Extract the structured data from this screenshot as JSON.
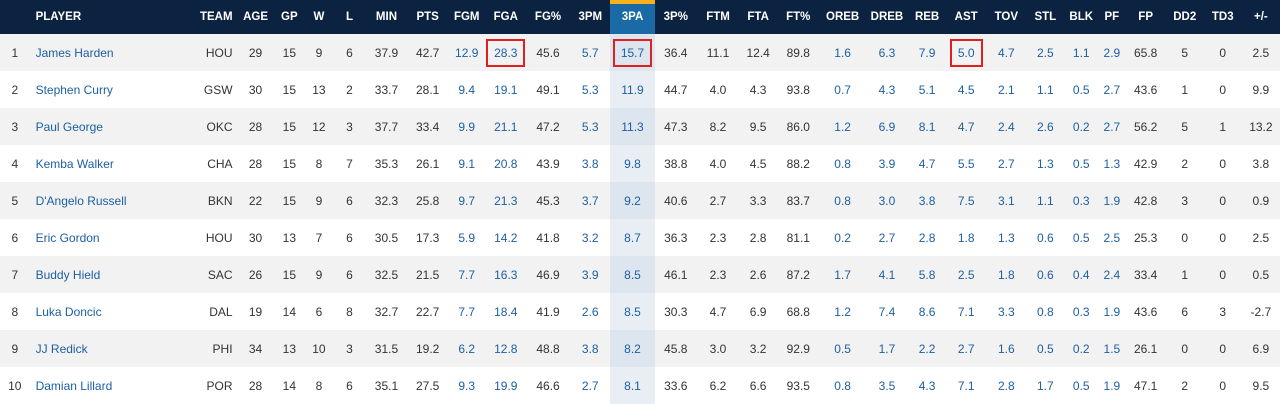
{
  "columns": [
    "",
    "PLAYER",
    "TEAM",
    "AGE",
    "GP",
    "W",
    "L",
    "MIN",
    "PTS",
    "FGM",
    "FGA",
    "FG%",
    "3PM",
    "3PA",
    "3P%",
    "FTM",
    "FTA",
    "FT%",
    "OREB",
    "DREB",
    "REB",
    "AST",
    "TOV",
    "STL",
    "BLK",
    "PF",
    "FP",
    "DD2",
    "TD3",
    "+/-"
  ],
  "sorted_column": "3PA",
  "colors": {
    "header_bg": "#0b2341",
    "sorted_header": "#1a6aa6",
    "sort_accent": "#f6b21a",
    "link": "#1d5fa2",
    "highlight_box": "#e02020",
    "row_alt": "#f2f2f2"
  },
  "rows": [
    [
      "1",
      "James Harden",
      "HOU",
      "29",
      "15",
      "9",
      "6",
      "37.9",
      "42.7",
      "12.9",
      "28.3",
      "45.6",
      "5.7",
      "15.7",
      "36.4",
      "11.1",
      "12.4",
      "89.8",
      "1.6",
      "6.3",
      "7.9",
      "5.0",
      "4.7",
      "2.5",
      "1.1",
      "2.9",
      "65.8",
      "5",
      "0",
      "2.5"
    ],
    [
      "2",
      "Stephen Curry",
      "GSW",
      "30",
      "15",
      "13",
      "2",
      "33.7",
      "28.1",
      "9.4",
      "19.1",
      "49.1",
      "5.3",
      "11.9",
      "44.7",
      "4.0",
      "4.3",
      "93.8",
      "0.7",
      "4.3",
      "5.1",
      "4.5",
      "2.1",
      "1.1",
      "0.5",
      "2.7",
      "43.6",
      "1",
      "0",
      "9.9"
    ],
    [
      "3",
      "Paul George",
      "OKC",
      "28",
      "15",
      "12",
      "3",
      "37.7",
      "33.4",
      "9.9",
      "21.1",
      "47.2",
      "5.3",
      "11.3",
      "47.3",
      "8.2",
      "9.5",
      "86.0",
      "1.2",
      "6.9",
      "8.1",
      "4.7",
      "2.4",
      "2.6",
      "0.2",
      "2.7",
      "56.2",
      "5",
      "1",
      "13.2"
    ],
    [
      "4",
      "Kemba Walker",
      "CHA",
      "28",
      "15",
      "8",
      "7",
      "35.3",
      "26.1",
      "9.1",
      "20.8",
      "43.9",
      "3.8",
      "9.8",
      "38.8",
      "4.0",
      "4.5",
      "88.2",
      "0.8",
      "3.9",
      "4.7",
      "5.5",
      "2.7",
      "1.3",
      "0.5",
      "1.3",
      "42.9",
      "2",
      "0",
      "3.8"
    ],
    [
      "5",
      "D'Angelo Russell",
      "BKN",
      "22",
      "15",
      "9",
      "6",
      "32.3",
      "25.8",
      "9.7",
      "21.3",
      "45.3",
      "3.7",
      "9.2",
      "40.6",
      "2.7",
      "3.3",
      "83.7",
      "0.8",
      "3.0",
      "3.8",
      "7.5",
      "3.1",
      "1.1",
      "0.3",
      "1.9",
      "42.8",
      "3",
      "0",
      "0.9"
    ],
    [
      "6",
      "Eric Gordon",
      "HOU",
      "30",
      "13",
      "7",
      "6",
      "30.5",
      "17.3",
      "5.9",
      "14.2",
      "41.8",
      "3.2",
      "8.7",
      "36.3",
      "2.3",
      "2.8",
      "81.1",
      "0.2",
      "2.7",
      "2.8",
      "1.8",
      "1.3",
      "0.6",
      "0.5",
      "2.5",
      "25.3",
      "0",
      "0",
      "2.5"
    ],
    [
      "7",
      "Buddy Hield",
      "SAC",
      "26",
      "15",
      "9",
      "6",
      "32.5",
      "21.5",
      "7.7",
      "16.3",
      "46.9",
      "3.9",
      "8.5",
      "46.1",
      "2.3",
      "2.6",
      "87.2",
      "1.7",
      "4.1",
      "5.8",
      "2.5",
      "1.8",
      "0.6",
      "0.4",
      "2.4",
      "33.4",
      "1",
      "0",
      "0.5"
    ],
    [
      "8",
      "Luka Doncic",
      "DAL",
      "19",
      "14",
      "6",
      "8",
      "32.7",
      "22.7",
      "7.7",
      "18.4",
      "41.9",
      "2.6",
      "8.5",
      "30.3",
      "4.7",
      "6.9",
      "68.8",
      "1.2",
      "7.4",
      "8.6",
      "7.1",
      "3.3",
      "0.8",
      "0.3",
      "1.9",
      "43.6",
      "6",
      "3",
      "-2.7"
    ],
    [
      "9",
      "JJ Redick",
      "PHI",
      "34",
      "13",
      "10",
      "3",
      "31.5",
      "19.2",
      "6.2",
      "12.8",
      "48.8",
      "3.8",
      "8.2",
      "45.8",
      "3.0",
      "3.2",
      "92.9",
      "0.5",
      "1.7",
      "2.2",
      "2.7",
      "1.6",
      "0.5",
      "0.2",
      "1.5",
      "26.1",
      "0",
      "0",
      "6.9"
    ],
    [
      "10",
      "Damian Lillard",
      "POR",
      "28",
      "14",
      "8",
      "6",
      "35.1",
      "27.5",
      "9.3",
      "19.9",
      "46.6",
      "2.7",
      "8.1",
      "33.6",
      "6.2",
      "6.6",
      "93.5",
      "0.8",
      "3.5",
      "4.3",
      "7.1",
      "2.8",
      "1.7",
      "0.5",
      "1.9",
      "47.1",
      "2",
      "0",
      "9.5"
    ]
  ],
  "highlighted_cells": [
    {
      "row": 0,
      "col": "FGA"
    },
    {
      "row": 0,
      "col": "3PA"
    },
    {
      "row": 0,
      "col": "AST"
    }
  ]
}
